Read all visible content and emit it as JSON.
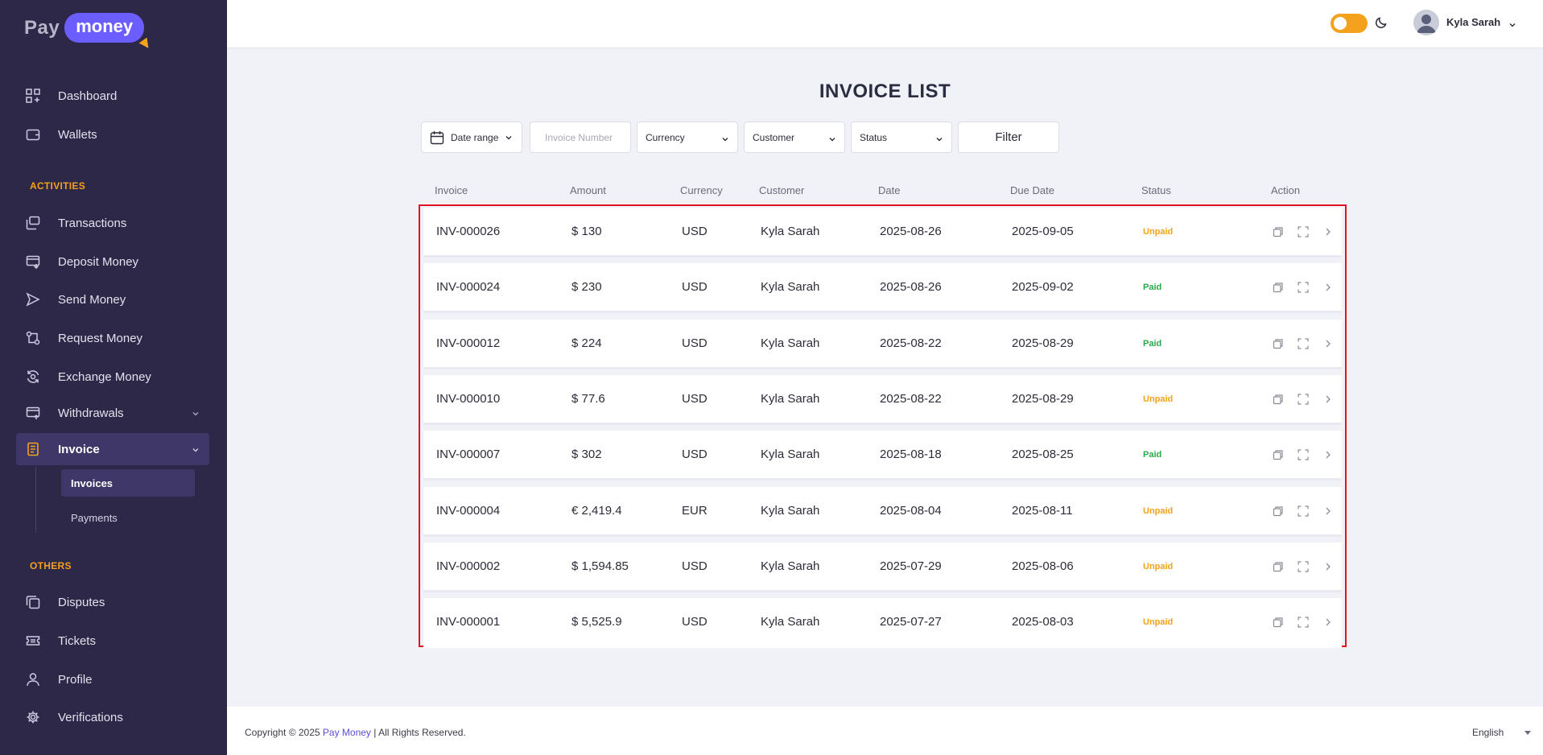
{
  "brand": {
    "pay": "Pay",
    "money": "money"
  },
  "sidebar": {
    "items": [
      {
        "label": "Dashboard",
        "icon": "dashboard-icon"
      },
      {
        "label": "Wallets",
        "icon": "wallet-icon"
      },
      {
        "label": "Transactions",
        "icon": "transactions-icon"
      },
      {
        "label": "Deposit Money",
        "icon": "deposit-icon"
      },
      {
        "label": "Send Money",
        "icon": "send-icon"
      },
      {
        "label": "Request Money",
        "icon": "request-icon"
      },
      {
        "label": "Exchange Money",
        "icon": "exchange-icon"
      },
      {
        "label": "Withdrawals",
        "icon": "withdrawal-icon"
      },
      {
        "label": "Invoice",
        "icon": "invoice-icon"
      },
      {
        "label": "Disputes",
        "icon": "disputes-icon"
      },
      {
        "label": "Tickets",
        "icon": "ticket-icon"
      },
      {
        "label": "Profile",
        "icon": "profile-icon"
      },
      {
        "label": "Verifications",
        "icon": "verification-icon"
      }
    ],
    "sections": {
      "activities": "ACTIVITIES",
      "others": "OTHERS"
    },
    "invoice_sub": {
      "invoices": "Invoices",
      "payments": "Payments"
    }
  },
  "header": {
    "username": "Kyla Sarah"
  },
  "page": {
    "title": "INVOICE LIST"
  },
  "filters": {
    "date_range": "Date range",
    "invoice_number_placeholder": "Invoice Number",
    "currency": "Currency",
    "customer": "Customer",
    "status": "Status",
    "filter_button": "Filter"
  },
  "table": {
    "columns": [
      "Invoice",
      "Amount",
      "Currency",
      "Customer",
      "Date",
      "Due Date",
      "Status",
      "Action"
    ],
    "rows": [
      {
        "invoice": "INV-000026",
        "amount": "$ 130",
        "currency": "USD",
        "customer": "Kyla Sarah",
        "date": "2025-08-26",
        "due": "2025-09-05",
        "status": "Unpaid"
      },
      {
        "invoice": "INV-000024",
        "amount": "$ 230",
        "currency": "USD",
        "customer": "Kyla Sarah",
        "date": "2025-08-26",
        "due": "2025-09-02",
        "status": "Paid"
      },
      {
        "invoice": "INV-000012",
        "amount": "$ 224",
        "currency": "USD",
        "customer": "Kyla Sarah",
        "date": "2025-08-22",
        "due": "2025-08-29",
        "status": "Paid"
      },
      {
        "invoice": "INV-000010",
        "amount": "$ 77.6",
        "currency": "USD",
        "customer": "Kyla Sarah",
        "date": "2025-08-22",
        "due": "2025-08-29",
        "status": "Unpaid"
      },
      {
        "invoice": "INV-000007",
        "amount": "$ 302",
        "currency": "USD",
        "customer": "Kyla Sarah",
        "date": "2025-08-18",
        "due": "2025-08-25",
        "status": "Paid"
      },
      {
        "invoice": "INV-000004",
        "amount": "€ 2,419.4",
        "currency": "EUR",
        "customer": "Kyla Sarah",
        "date": "2025-08-04",
        "due": "2025-08-11",
        "status": "Unpaid"
      },
      {
        "invoice": "INV-000002",
        "amount": "$ 1,594.85",
        "currency": "USD",
        "customer": "Kyla Sarah",
        "date": "2025-07-29",
        "due": "2025-08-06",
        "status": "Unpaid"
      },
      {
        "invoice": "INV-000001",
        "amount": "$ 5,525.9",
        "currency": "USD",
        "customer": "Kyla Sarah",
        "date": "2025-07-27",
        "due": "2025-08-03",
        "status": "Unpaid"
      }
    ]
  },
  "footer": {
    "copyright_prefix": "Copyright © 2025",
    "brand": "Pay Money",
    "copyright_suffix": "| All Rights Reserved.",
    "language": "English"
  },
  "colors": {
    "sidebar_bg": "#2d2748",
    "accent": "#f4a11d",
    "brand": "#6c5dff",
    "paid": "#2aa84a",
    "unpaid": "#f4a11d",
    "highlight": "#e0141e"
  }
}
